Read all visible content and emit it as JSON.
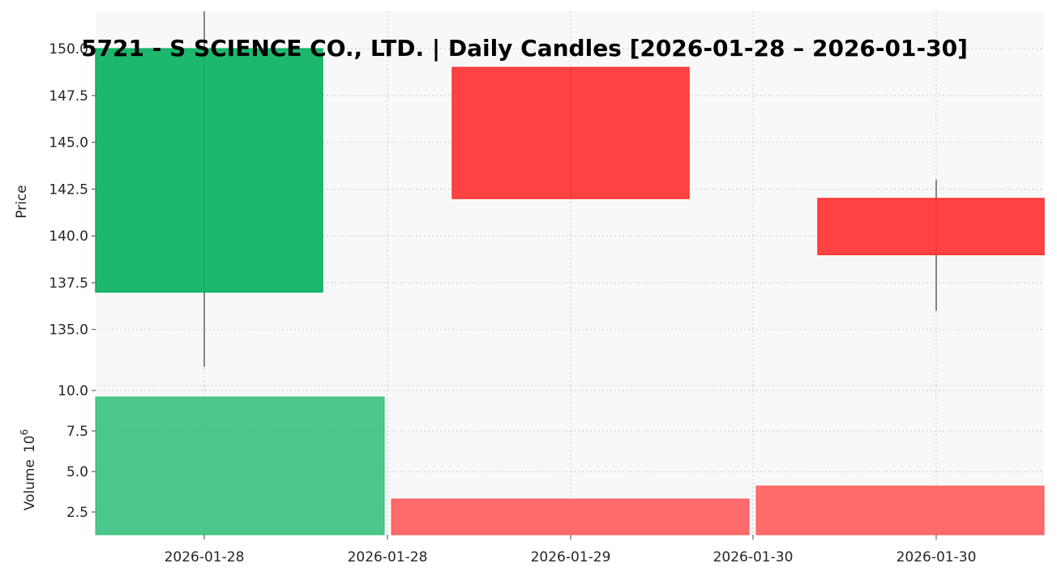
{
  "chart_data": {
    "type": "candlestick",
    "title": "5721 - S SCIENCE CO., LTD. | Daily Candles [2026-01-28 – 2026-01-30]",
    "price_panel": {
      "ylabel": "Price",
      "ylim": [
        132.0,
        152.0
      ],
      "yticks": [
        135.0,
        137.5,
        140.0,
        142.5,
        145.0,
        147.5,
        150.0
      ],
      "ytick_labels": [
        "135.0",
        "137.5",
        "140.0",
        "142.5",
        "145.0",
        "147.5",
        "150.0"
      ],
      "candles": [
        {
          "date": "2026-01-28",
          "open": 137.0,
          "high": 152.0,
          "low": 133.0,
          "close": 150.0,
          "color": "#0bb162"
        },
        {
          "date": "2026-01-29",
          "open": 149.0,
          "high": 149.0,
          "low": 142.0,
          "close": 142.0,
          "color": "#ff3232"
        },
        {
          "date": "2026-01-30",
          "open": 142.0,
          "high": 143.0,
          "low": 136.0,
          "close": 139.0,
          "color": "#ff3232"
        }
      ]
    },
    "volume_panel": {
      "ylabel": "Volume",
      "multiplier_label": "10",
      "multiplier_exp": "6",
      "ylim": [
        1.1,
        10.3
      ],
      "yticks": [
        2.5,
        5.0,
        7.5,
        10.0
      ],
      "ytick_labels": [
        "2.5",
        "5.0",
        "7.5",
        "10.0"
      ],
      "bars": [
        {
          "date": "2026-01-28",
          "value": 9.6,
          "color": "#33bf7b"
        },
        {
          "date": "2026-01-29",
          "value": 3.3,
          "color": "#ff5656"
        },
        {
          "date": "2026-01-30",
          "value": 4.1,
          "color": "#ff5656"
        }
      ]
    },
    "xtick_labels": [
      "2026-01-28",
      "2026-01-28",
      "2026-01-29",
      "2026-01-30",
      "2026-01-30"
    ],
    "grid": true,
    "background": "#f8f8f8"
  }
}
